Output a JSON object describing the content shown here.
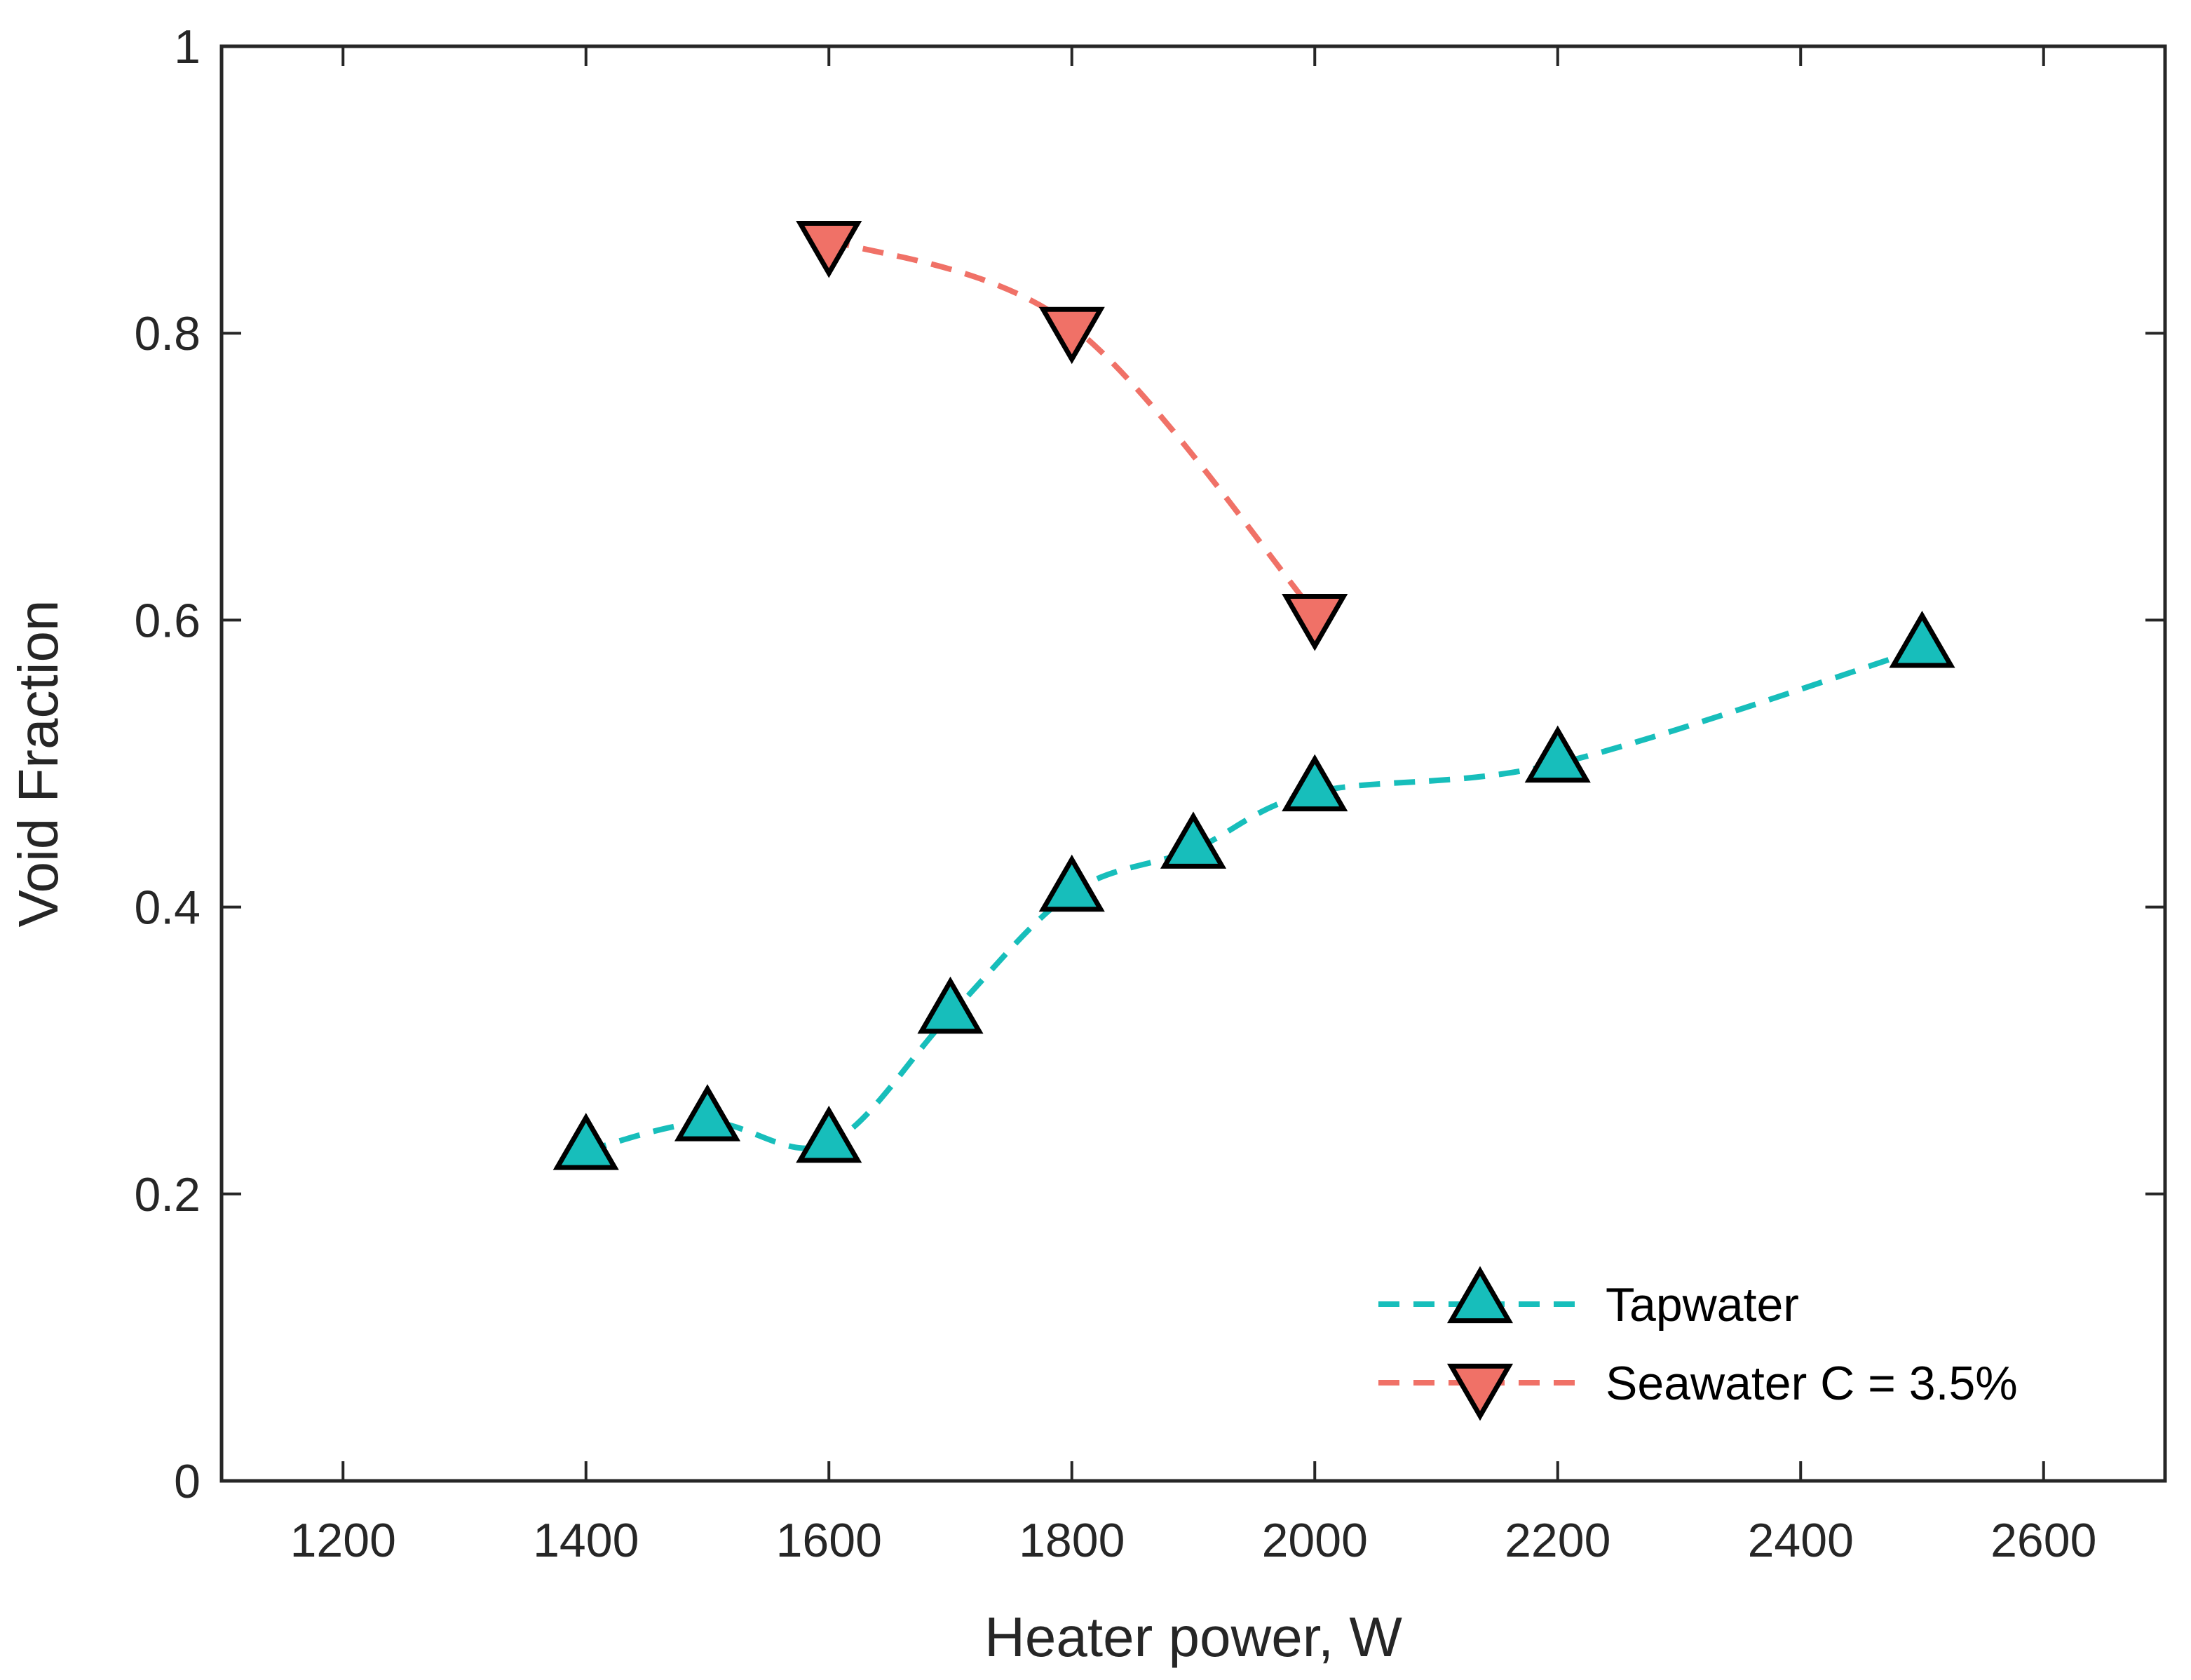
{
  "chart_data": {
    "type": "line",
    "title": "",
    "xlabel": "Heater power, W",
    "ylabel": "Void Fraction",
    "xlim": [
      1100,
      2700
    ],
    "ylim": [
      0,
      1
    ],
    "xticks": [
      1200,
      1400,
      1600,
      1800,
      2000,
      2200,
      2400,
      2600
    ],
    "yticks": [
      0,
      0.2,
      0.4,
      0.6,
      0.8,
      1
    ],
    "xtick_labels": [
      "1200",
      "1400",
      "1600",
      "1800",
      "2000",
      "2200",
      "2400",
      "2600"
    ],
    "ytick_labels": [
      "0",
      "0.2",
      "0.4",
      "0.6",
      "0.8",
      "1"
    ],
    "grid": false,
    "legend_position": "bottom-right",
    "series": [
      {
        "name": "Tapwater",
        "marker": "triangle-up",
        "line_style": "dashed",
        "color": "#17BEBB",
        "marker_fill": "#17BEBB",
        "x": [
          1400,
          1500,
          1600,
          1700,
          1800,
          1900,
          2000,
          2200,
          2500
        ],
        "y": [
          0.23,
          0.25,
          0.235,
          0.325,
          0.41,
          0.44,
          0.48,
          0.5,
          0.58
        ]
      },
      {
        "name": "Seawater C = 3.5%",
        "marker": "triangle-down",
        "line_style": "dashed",
        "color": "#F07167",
        "marker_fill": "#F07167",
        "x": [
          1600,
          1800,
          2000
        ],
        "y": [
          0.865,
          0.805,
          0.605
        ]
      }
    ]
  }
}
